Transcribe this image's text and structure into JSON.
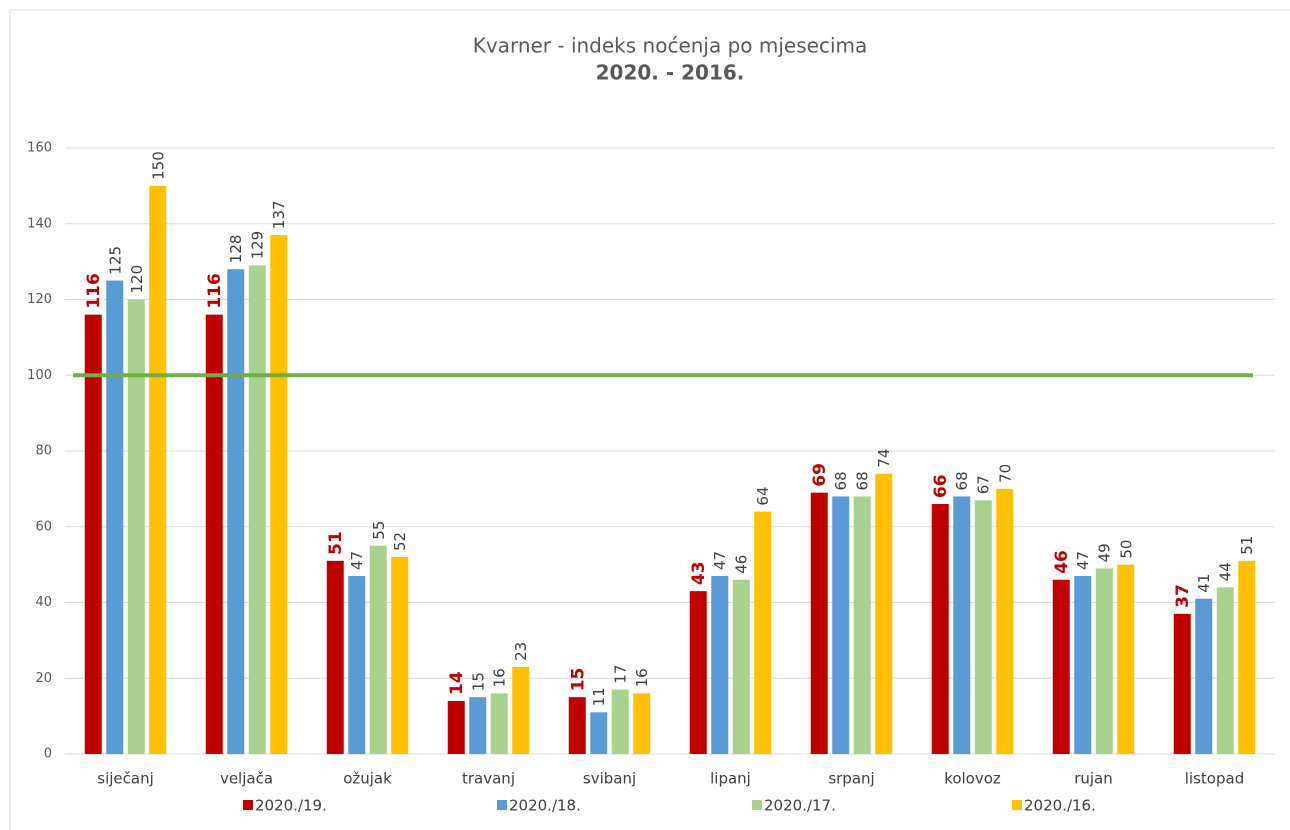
{
  "chart_data": {
    "type": "bar",
    "title": "Kvarner - indeks noćenja po mjesecima",
    "subtitle": "2020. - 2016.",
    "categories": [
      "siječanj",
      "veljača",
      "ožujak",
      "travanj",
      "svibanj",
      "lipanj",
      "srpanj",
      "kolovoz",
      "rujan",
      "listopad"
    ],
    "series": [
      {
        "name": "2020./19.",
        "color": "#c00000",
        "values": [
          116,
          116,
          51,
          14,
          15,
          43,
          69,
          66,
          46,
          37
        ]
      },
      {
        "name": "2020./18.",
        "color": "#5b9bd5",
        "values": [
          125,
          128,
          47,
          15,
          11,
          47,
          68,
          68,
          47,
          41
        ]
      },
      {
        "name": "2020./17.",
        "color": "#a9d18e",
        "values": [
          120,
          129,
          55,
          16,
          17,
          46,
          68,
          67,
          49,
          44
        ]
      },
      {
        "name": "2020./16.",
        "color": "#ffc000",
        "values": [
          150,
          137,
          52,
          23,
          16,
          64,
          74,
          70,
          50,
          51
        ]
      }
    ],
    "reference_line": {
      "value": 100,
      "color": "#70ad47"
    },
    "ylim": [
      0,
      160
    ],
    "yticks": [
      0,
      20,
      40,
      60,
      80,
      100,
      120,
      140,
      160
    ],
    "grid": true,
    "legend": "bottom"
  }
}
